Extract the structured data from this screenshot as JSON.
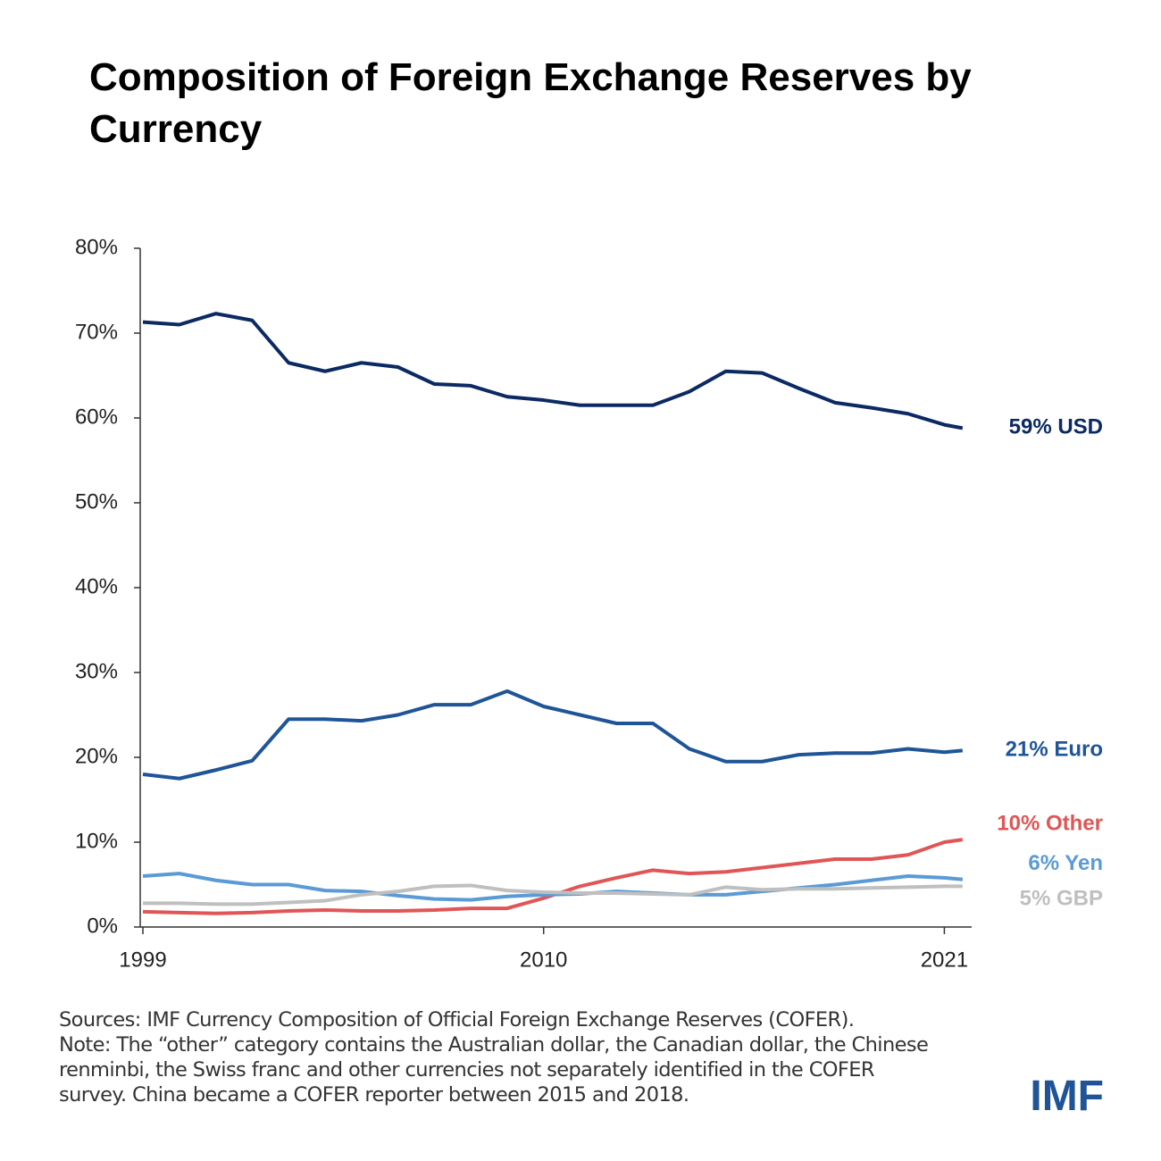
{
  "chart_data": {
    "type": "line",
    "title": "Composition of Foreign Exchange Reserves by Currency",
    "x": [
      1999,
      2000,
      2001,
      2002,
      2003,
      2004,
      2005,
      2006,
      2007,
      2008,
      2009,
      2010,
      2011,
      2012,
      2013,
      2014,
      2015,
      2016,
      2017,
      2018,
      2019,
      2020,
      2021,
      2021.5
    ],
    "xlim": [
      1999,
      2021.75
    ],
    "xticks": [
      1999,
      2010,
      2021
    ],
    "ylim": [
      0,
      80
    ],
    "yticks": [
      {
        "value": 0,
        "label": "0%"
      },
      {
        "value": 10,
        "label": "10%"
      },
      {
        "value": 20,
        "label": "20%"
      },
      {
        "value": 30,
        "label": "30%"
      },
      {
        "value": 40,
        "label": "40%"
      },
      {
        "value": 50,
        "label": "50%"
      },
      {
        "value": 60,
        "label": "60%"
      },
      {
        "value": 70,
        "label": "70%"
      },
      {
        "value": 80,
        "label": "80%"
      }
    ],
    "series": [
      {
        "name": "59% USD",
        "color": "#0b2a62",
        "values": [
          71.3,
          71,
          72.3,
          71.5,
          66.5,
          65.5,
          66.5,
          66,
          64,
          63.8,
          62.5,
          62.1,
          61.5,
          61.5,
          61.5,
          63.1,
          65.5,
          65.3,
          63.5,
          61.8,
          61.2,
          60.5,
          59.2,
          58.8
        ]
      },
      {
        "name": "21% Euro",
        "color": "#1f5597",
        "values": [
          18,
          17.5,
          18.5,
          19.6,
          24.5,
          24.5,
          24.3,
          25,
          26.2,
          26.2,
          27.8,
          26,
          25,
          24,
          24,
          21,
          19.5,
          19.5,
          20.3,
          20.5,
          20.5,
          21,
          20.6,
          20.8
        ]
      },
      {
        "name": "10% Other",
        "color": "#e05656",
        "values": [
          1.8,
          1.7,
          1.6,
          1.7,
          1.9,
          2,
          1.9,
          1.9,
          2,
          2.2,
          2.2,
          3.4,
          4.8,
          5.8,
          6.7,
          6.3,
          6.5,
          7,
          7.5,
          8,
          8,
          8.5,
          10,
          10.3
        ]
      },
      {
        "name": "6% Yen",
        "color": "#5b9bd5",
        "values": [
          6,
          6.3,
          5.5,
          5,
          5,
          4.3,
          4.2,
          3.7,
          3.3,
          3.2,
          3.6,
          3.8,
          3.9,
          4.2,
          4,
          3.8,
          3.8,
          4.2,
          4.6,
          5,
          5.5,
          6,
          5.8,
          5.6
        ]
      },
      {
        "name": "5% GBP",
        "color": "#bfbfbf",
        "values": [
          2.8,
          2.8,
          2.7,
          2.7,
          2.9,
          3.1,
          3.8,
          4.2,
          4.8,
          4.9,
          4.3,
          4.1,
          4,
          4,
          3.9,
          3.8,
          4.7,
          4.4,
          4.5,
          4.5,
          4.6,
          4.7,
          4.8,
          4.8
        ]
      }
    ],
    "source": "Sources: IMF Currency Composition of Official Foreign Exchange Reserves (COFER).",
    "note": "Note: The “other” category contains the Australian dollar, the Canadian dollar, the Chinese renminbi, the Swiss franc and other currencies not separately identified in the COFER survey. China became a COFER reporter between 2015 and 2018.",
    "logo": "IMF"
  }
}
